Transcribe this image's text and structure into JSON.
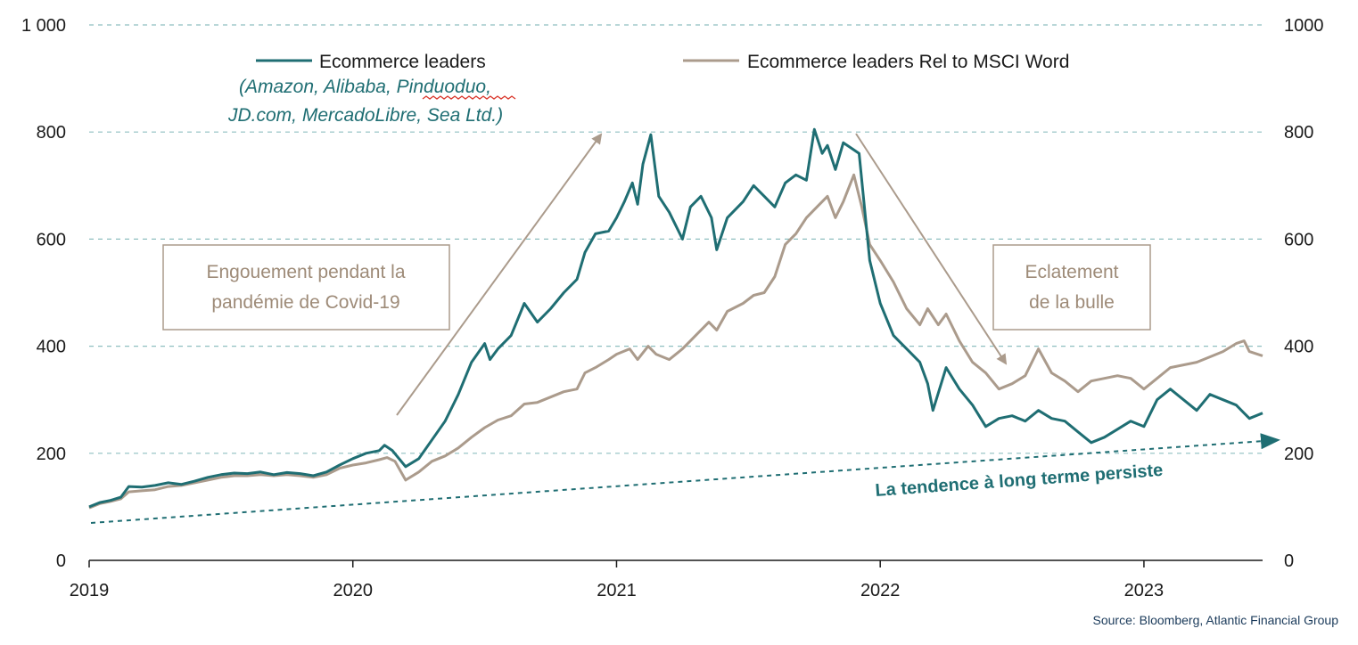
{
  "chart_data": {
    "type": "line",
    "x_range": [
      2019.0,
      2023.45
    ],
    "ylim": [
      0,
      1000
    ],
    "ylim_right": [
      0,
      1000
    ],
    "y_ticks_left": [
      "0",
      "200",
      "400",
      "600",
      "800",
      "1 000"
    ],
    "y_ticks_right": [
      "0",
      "200",
      "400",
      "600",
      "800",
      "1000"
    ],
    "x_ticks": [
      "2019",
      "2020",
      "2021",
      "2022",
      "2023"
    ],
    "grid": "horizontal dashed",
    "legend": {
      "placement": "top",
      "members_note_line1": "(Amazon, Alibaba, Pinduoduo,",
      "members_note_line2": "JD.com, MercadoLibre, Sea Ltd.)"
    },
    "series": [
      {
        "name": "Ecommerce leaders",
        "color": "#1f6e73",
        "points": [
          [
            2019.0,
            100
          ],
          [
            2019.04,
            108
          ],
          [
            2019.08,
            112
          ],
          [
            2019.12,
            118
          ],
          [
            2019.15,
            138
          ],
          [
            2019.2,
            137
          ],
          [
            2019.25,
            140
          ],
          [
            2019.3,
            145
          ],
          [
            2019.35,
            142
          ],
          [
            2019.4,
            148
          ],
          [
            2019.45,
            155
          ],
          [
            2019.5,
            160
          ],
          [
            2019.55,
            163
          ],
          [
            2019.6,
            162
          ],
          [
            2019.65,
            165
          ],
          [
            2019.7,
            160
          ],
          [
            2019.75,
            164
          ],
          [
            2019.8,
            162
          ],
          [
            2019.85,
            158
          ],
          [
            2019.9,
            165
          ],
          [
            2019.95,
            178
          ],
          [
            2020.0,
            190
          ],
          [
            2020.05,
            200
          ],
          [
            2020.1,
            205
          ],
          [
            2020.12,
            215
          ],
          [
            2020.15,
            205
          ],
          [
            2020.2,
            175
          ],
          [
            2020.25,
            190
          ],
          [
            2020.3,
            225
          ],
          [
            2020.35,
            260
          ],
          [
            2020.4,
            310
          ],
          [
            2020.45,
            370
          ],
          [
            2020.5,
            405
          ],
          [
            2020.52,
            375
          ],
          [
            2020.55,
            395
          ],
          [
            2020.6,
            420
          ],
          [
            2020.65,
            480
          ],
          [
            2020.7,
            445
          ],
          [
            2020.75,
            470
          ],
          [
            2020.8,
            500
          ],
          [
            2020.85,
            525
          ],
          [
            2020.88,
            575
          ],
          [
            2020.92,
            610
          ],
          [
            2020.97,
            615
          ],
          [
            2021.0,
            640
          ],
          [
            2021.03,
            670
          ],
          [
            2021.06,
            705
          ],
          [
            2021.08,
            665
          ],
          [
            2021.1,
            740
          ],
          [
            2021.13,
            795
          ],
          [
            2021.16,
            680
          ],
          [
            2021.2,
            650
          ],
          [
            2021.25,
            600
          ],
          [
            2021.28,
            660
          ],
          [
            2021.32,
            680
          ],
          [
            2021.36,
            640
          ],
          [
            2021.38,
            580
          ],
          [
            2021.42,
            640
          ],
          [
            2021.48,
            670
          ],
          [
            2021.52,
            700
          ],
          [
            2021.56,
            680
          ],
          [
            2021.6,
            660
          ],
          [
            2021.64,
            705
          ],
          [
            2021.68,
            720
          ],
          [
            2021.72,
            710
          ],
          [
            2021.75,
            805
          ],
          [
            2021.78,
            760
          ],
          [
            2021.8,
            775
          ],
          [
            2021.83,
            730
          ],
          [
            2021.86,
            780
          ],
          [
            2021.89,
            770
          ],
          [
            2021.92,
            760
          ],
          [
            2021.96,
            560
          ],
          [
            2022.0,
            480
          ],
          [
            2022.05,
            420
          ],
          [
            2022.1,
            395
          ],
          [
            2022.15,
            370
          ],
          [
            2022.18,
            330
          ],
          [
            2022.2,
            280
          ],
          [
            2022.25,
            360
          ],
          [
            2022.3,
            320
          ],
          [
            2022.35,
            290
          ],
          [
            2022.4,
            250
          ],
          [
            2022.45,
            265
          ],
          [
            2022.5,
            270
          ],
          [
            2022.55,
            260
          ],
          [
            2022.6,
            280
          ],
          [
            2022.65,
            265
          ],
          [
            2022.7,
            260
          ],
          [
            2022.75,
            240
          ],
          [
            2022.8,
            220
          ],
          [
            2022.85,
            230
          ],
          [
            2022.9,
            245
          ],
          [
            2022.95,
            260
          ],
          [
            2023.0,
            250
          ],
          [
            2023.05,
            300
          ],
          [
            2023.1,
            320
          ],
          [
            2023.15,
            300
          ],
          [
            2023.2,
            280
          ],
          [
            2023.25,
            310
          ],
          [
            2023.3,
            300
          ],
          [
            2023.35,
            290
          ],
          [
            2023.4,
            265
          ],
          [
            2023.45,
            275
          ]
        ]
      },
      {
        "name": "Ecommerce leaders Rel to MSCI Word",
        "color": "#ab9b8c",
        "points": [
          [
            2019.0,
            98
          ],
          [
            2019.04,
            106
          ],
          [
            2019.08,
            110
          ],
          [
            2019.12,
            115
          ],
          [
            2019.15,
            128
          ],
          [
            2019.2,
            130
          ],
          [
            2019.25,
            132
          ],
          [
            2019.3,
            138
          ],
          [
            2019.35,
            140
          ],
          [
            2019.4,
            145
          ],
          [
            2019.45,
            150
          ],
          [
            2019.5,
            155
          ],
          [
            2019.55,
            158
          ],
          [
            2019.6,
            158
          ],
          [
            2019.65,
            160
          ],
          [
            2019.7,
            158
          ],
          [
            2019.75,
            160
          ],
          [
            2019.8,
            158
          ],
          [
            2019.85,
            155
          ],
          [
            2019.9,
            160
          ],
          [
            2019.95,
            172
          ],
          [
            2020.0,
            178
          ],
          [
            2020.05,
            182
          ],
          [
            2020.1,
            188
          ],
          [
            2020.13,
            192
          ],
          [
            2020.16,
            185
          ],
          [
            2020.2,
            150
          ],
          [
            2020.25,
            165
          ],
          [
            2020.3,
            185
          ],
          [
            2020.35,
            195
          ],
          [
            2020.4,
            210
          ],
          [
            2020.45,
            230
          ],
          [
            2020.5,
            248
          ],
          [
            2020.55,
            262
          ],
          [
            2020.6,
            270
          ],
          [
            2020.65,
            292
          ],
          [
            2020.7,
            295
          ],
          [
            2020.75,
            305
          ],
          [
            2020.8,
            315
          ],
          [
            2020.85,
            320
          ],
          [
            2020.88,
            350
          ],
          [
            2020.92,
            360
          ],
          [
            2020.97,
            375
          ],
          [
            2021.0,
            385
          ],
          [
            2021.05,
            395
          ],
          [
            2021.08,
            375
          ],
          [
            2021.12,
            400
          ],
          [
            2021.15,
            385
          ],
          [
            2021.2,
            375
          ],
          [
            2021.25,
            395
          ],
          [
            2021.3,
            420
          ],
          [
            2021.35,
            445
          ],
          [
            2021.38,
            430
          ],
          [
            2021.42,
            465
          ],
          [
            2021.48,
            480
          ],
          [
            2021.52,
            495
          ],
          [
            2021.56,
            500
          ],
          [
            2021.6,
            530
          ],
          [
            2021.64,
            590
          ],
          [
            2021.68,
            610
          ],
          [
            2021.72,
            640
          ],
          [
            2021.76,
            660
          ],
          [
            2021.8,
            680
          ],
          [
            2021.83,
            640
          ],
          [
            2021.86,
            670
          ],
          [
            2021.9,
            720
          ],
          [
            2021.93,
            660
          ],
          [
            2021.96,
            590
          ],
          [
            2022.0,
            560
          ],
          [
            2022.05,
            520
          ],
          [
            2022.1,
            470
          ],
          [
            2022.15,
            440
          ],
          [
            2022.18,
            470
          ],
          [
            2022.22,
            440
          ],
          [
            2022.25,
            460
          ],
          [
            2022.3,
            410
          ],
          [
            2022.35,
            370
          ],
          [
            2022.4,
            350
          ],
          [
            2022.45,
            320
          ],
          [
            2022.5,
            330
          ],
          [
            2022.55,
            345
          ],
          [
            2022.6,
            395
          ],
          [
            2022.65,
            350
          ],
          [
            2022.7,
            335
          ],
          [
            2022.75,
            315
          ],
          [
            2022.8,
            335
          ],
          [
            2022.85,
            340
          ],
          [
            2022.9,
            345
          ],
          [
            2022.95,
            340
          ],
          [
            2023.0,
            320
          ],
          [
            2023.05,
            340
          ],
          [
            2023.1,
            360
          ],
          [
            2023.15,
            365
          ],
          [
            2023.2,
            370
          ],
          [
            2023.25,
            380
          ],
          [
            2023.3,
            390
          ],
          [
            2023.35,
            405
          ],
          [
            2023.38,
            410
          ],
          [
            2023.4,
            390
          ],
          [
            2023.45,
            382
          ]
        ]
      }
    ],
    "annotations": {
      "box_left_line1": "Engouement pendant la",
      "box_left_line2": "pandémie de Covid-19",
      "box_right_line1": "Eclatement",
      "box_right_line2": "de la bulle",
      "trend_label": "La tendence à long terme persiste"
    }
  },
  "source": "Source: Bloomberg, Atlantic Financial Group"
}
